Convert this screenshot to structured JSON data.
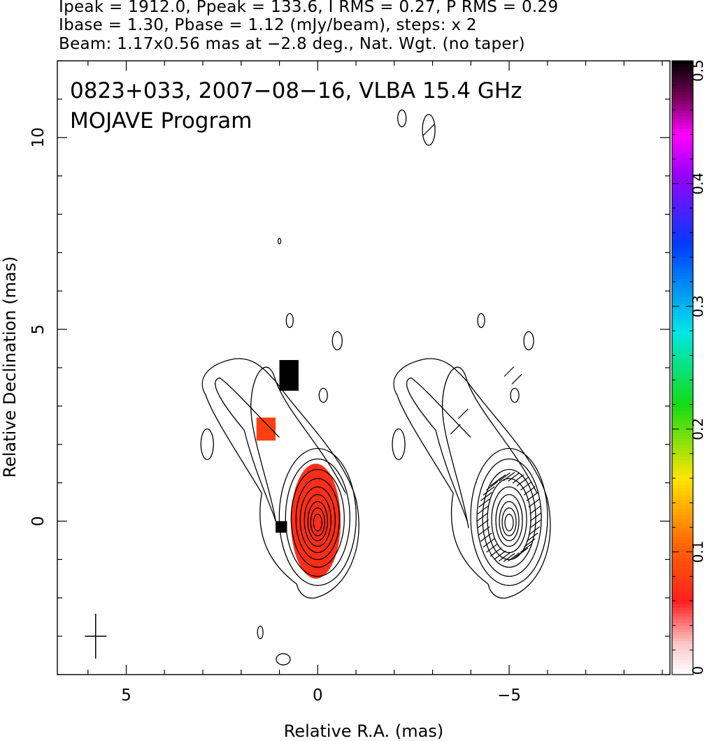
{
  "header": {
    "line1": "Ipeak = 1912.0, Ppeak = 133.6, I RMS = 0.27, P RMS = 0.29",
    "line2": "Ibase = 1.30, Pbase = 1.12 (mJy/beam), steps: x 2",
    "line3": "Beam: 1.17x0.56 mas at −2.8 deg., Nat. Wgt. (no taper)"
  },
  "chart_data": {
    "type": "heatmap",
    "title": "0823+033, 2007−08−16, VLBA 15.4 GHz",
    "subtitle": "MOJAVE Program",
    "xlabel": "Relative R.A. (mas)",
    "ylabel": "Relative Declination (mas)",
    "xlim": [
      6.8,
      -9.2
    ],
    "ylim": [
      -4.0,
      12.0
    ],
    "x_ticks": [
      5,
      0,
      -5
    ],
    "x_tick_labels": [
      "5",
      "0",
      "−5"
    ],
    "y_ticks": [
      0,
      5,
      10
    ],
    "y_tick_labels": [
      "0",
      "5",
      "10"
    ],
    "colorbar": {
      "range": [
        0,
        0.5
      ],
      "ticks": [
        0,
        0.1,
        0.2,
        0.3,
        0.4,
        0.5
      ],
      "tick_labels": [
        "0",
        "0.1",
        "0.2",
        "0.3",
        "0.4",
        "0.5"
      ]
    },
    "beam": {
      "major_mas": 1.17,
      "minor_mas": 0.56,
      "pa_deg": -2.8
    },
    "core": {
      "ra": 0.0,
      "dec": 0.0
    },
    "polarization_fraction_regions": [
      {
        "ra_range": [
          -0.6,
          0.7
        ],
        "dec_range": [
          -1.5,
          1.5
        ],
        "value": 0.07
      },
      {
        "ra_range": [
          1.1,
          1.6
        ],
        "dec_range": [
          2.1,
          2.7
        ],
        "value": 0.08
      },
      {
        "ra_range": [
          0.5,
          1.0
        ],
        "dec_range": [
          3.4,
          4.2
        ],
        "value": 0.5
      },
      {
        "ra_range": [
          0.8,
          1.1
        ],
        "dec_range": [
          -0.3,
          0.0
        ],
        "value": 0.5
      }
    ]
  }
}
